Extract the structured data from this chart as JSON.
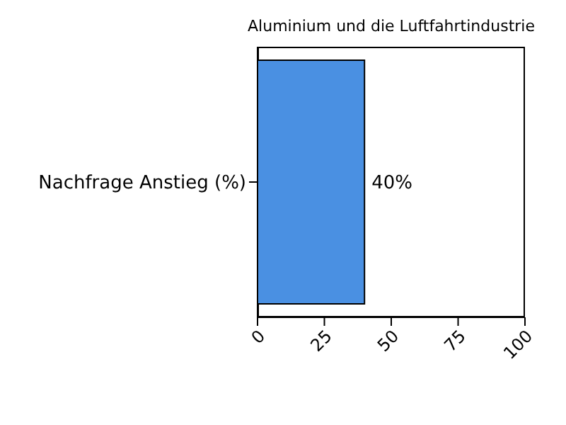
{
  "chart_data": {
    "type": "bar",
    "orientation": "horizontal",
    "title": "Aluminium und die Luftfahrtindustrie",
    "categories": [
      "Nachfrage Anstieg (%)"
    ],
    "values": [
      40
    ],
    "color": "#4a90e2",
    "value_labels": [
      "40%"
    ],
    "xlim": [
      0,
      100
    ],
    "xticks": [
      0,
      25,
      50,
      75,
      100
    ]
  }
}
